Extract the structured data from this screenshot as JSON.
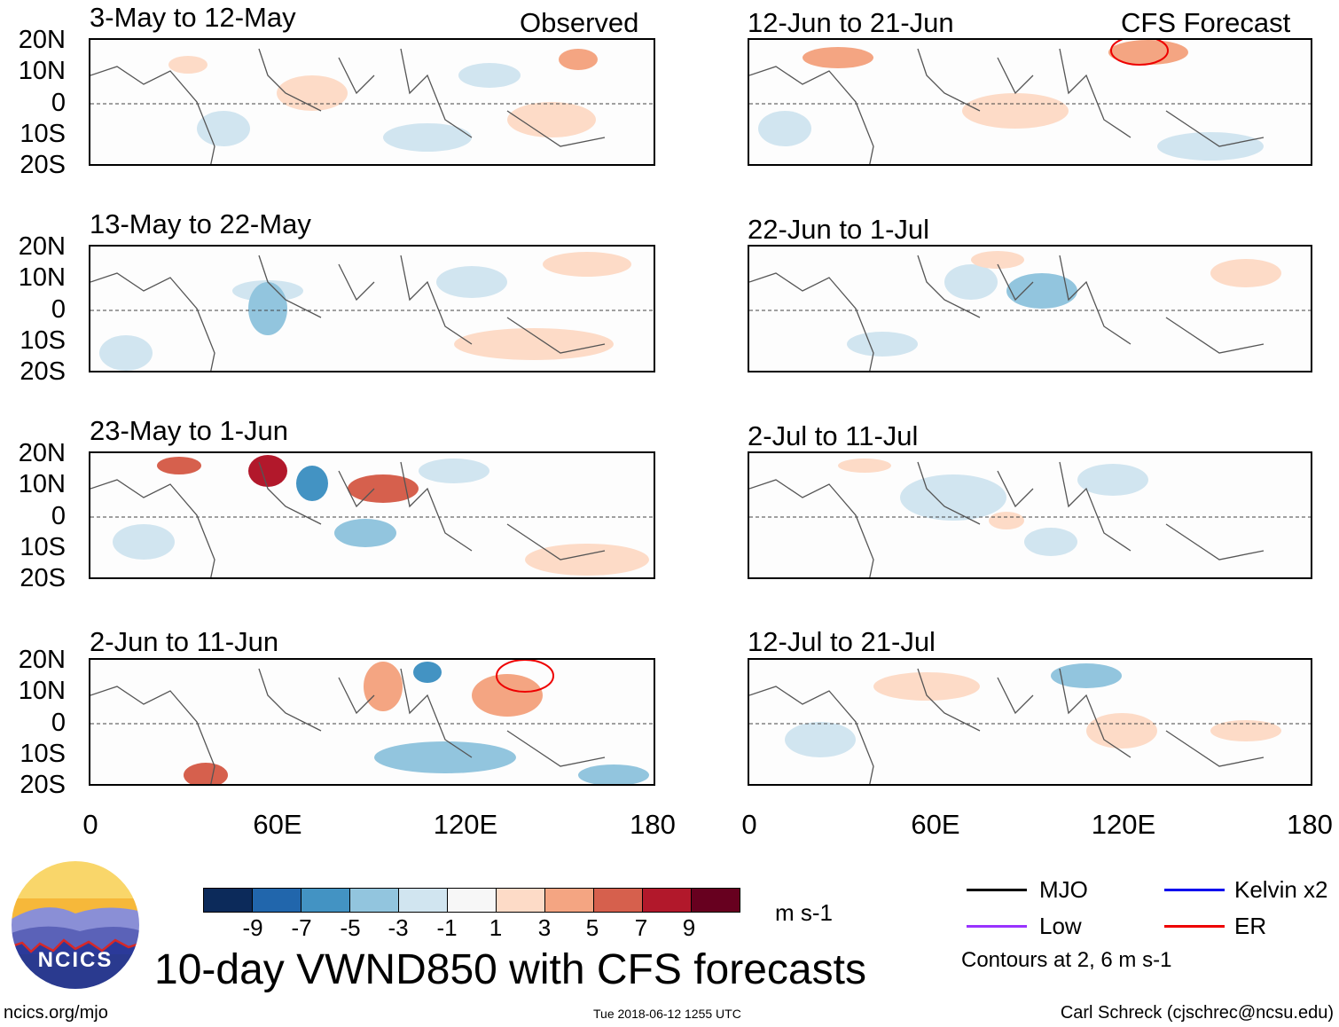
{
  "headers": {
    "observed": "Observed",
    "forecast": "CFS Forecast"
  },
  "panels_left": [
    {
      "title": "3-May to 12-May"
    },
    {
      "title": "13-May to 22-May"
    },
    {
      "title": "23-May to 1-Jun"
    },
    {
      "title": "2-Jun to 11-Jun"
    }
  ],
  "panels_right": [
    {
      "title": "12-Jun to 21-Jun"
    },
    {
      "title": "22-Jun to 1-Jul"
    },
    {
      "title": "2-Jul to 11-Jul"
    },
    {
      "title": "12-Jul to 21-Jul"
    }
  ],
  "lat_labels": [
    "20N",
    "10N",
    "0",
    "10S",
    "20S"
  ],
  "lon_labels": [
    "0",
    "60E",
    "120E",
    "180"
  ],
  "colorbar": {
    "colors": [
      "#0c2a5a",
      "#2166ac",
      "#4393c3",
      "#92c5de",
      "#d1e5f0",
      "#f7f7f7",
      "#fddbc7",
      "#f4a582",
      "#d6604d",
      "#b2182b",
      "#67001f"
    ],
    "labels": [
      "-9",
      "-7",
      "-5",
      "-3",
      "-1",
      "1",
      "3",
      "5",
      "7",
      "9"
    ],
    "units": "m s-1"
  },
  "legend": {
    "items": [
      {
        "label": "MJO",
        "color": "#000000"
      },
      {
        "label": "Kelvin x2",
        "color": "#0000ee"
      },
      {
        "label": "Low",
        "color": "#9933ff"
      },
      {
        "label": "ER",
        "color": "#ee0000"
      }
    ],
    "contours_note": "Contours at 2, 6 m s-1"
  },
  "footer": {
    "main_title": "10-day VWND850 with CFS forecasts",
    "logo_text": "NCICS",
    "site": "ncics.org/mjo",
    "timestamp": "Tue 2018-06-12 1255 UTC",
    "author": "Carl Schreck (cjschrec@ncsu.edu)"
  }
}
